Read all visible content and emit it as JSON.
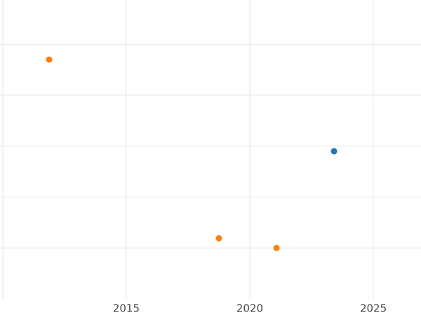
{
  "chart_data": {
    "type": "scatter",
    "series": [
      {
        "color": "#ff7f0e",
        "x": [
          2011.88,
          2018.75,
          2021.08
        ],
        "values": [
          4.7,
          1.19,
          1.0
        ]
      },
      {
        "color": "#1f77b4",
        "x": [
          2023.41
        ],
        "values": [
          2.9
        ]
      }
    ],
    "xlim": [
      2009.89,
      2026.93
    ],
    "xticks": [
      2015,
      2020,
      2025
    ],
    "ylim": [
      0,
      5.87
    ],
    "yticks": [
      1,
      2,
      3,
      4,
      5
    ],
    "grid": true
  }
}
